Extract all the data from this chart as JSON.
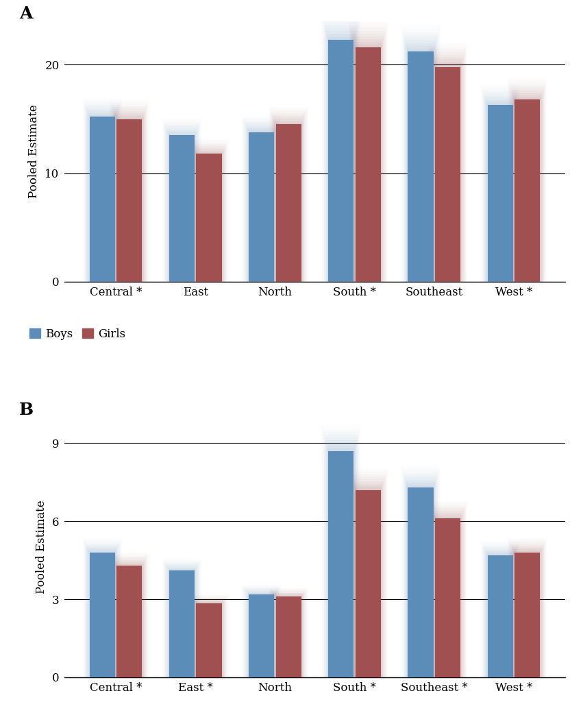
{
  "panel_A": {
    "title": "A",
    "categories": [
      "Central *",
      "East",
      "North",
      "South *",
      "Southeast",
      "West *"
    ],
    "boys": [
      15.2,
      13.5,
      13.8,
      22.3,
      21.2,
      16.3
    ],
    "girls": [
      15.0,
      11.8,
      14.5,
      21.6,
      19.8,
      16.8
    ],
    "ylabel": "Pooled Estimate",
    "ylim": [
      0,
      24
    ],
    "yticks": [
      0,
      10,
      20
    ]
  },
  "panel_B": {
    "title": "B",
    "categories": [
      "Central *",
      "East *",
      "North",
      "South *",
      "Southeast *",
      "West *"
    ],
    "boys": [
      4.8,
      4.1,
      3.2,
      8.7,
      7.3,
      4.7
    ],
    "girls": [
      4.3,
      2.85,
      3.1,
      7.2,
      6.1,
      4.8
    ],
    "ylabel": "Pooled Estimate",
    "ylim": [
      0,
      10
    ],
    "yticks": [
      0,
      3,
      6,
      9
    ]
  },
  "boys_color": "#5b8db8",
  "girls_color": "#a05050",
  "bar_width": 0.32,
  "background_color": "#ffffff"
}
